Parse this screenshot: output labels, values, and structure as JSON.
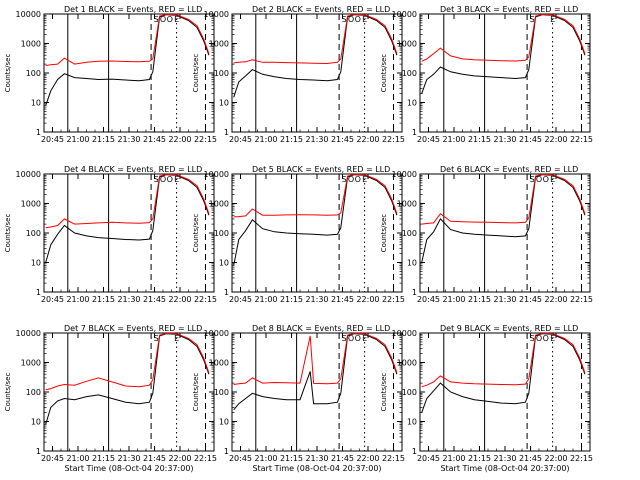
{
  "figure": {
    "x_tick_labels": [
      "20:45",
      "21:00",
      "21:15",
      "21:30",
      "21:45",
      "22:00",
      "22:15"
    ],
    "y_tick_labels": [
      "1",
      "10",
      "100",
      "1000",
      "10000"
    ]
  },
  "colors": {
    "events": "#000000",
    "lld": "#ff0000",
    "axes": "#000000"
  },
  "chart_data": [
    {
      "type": "line",
      "panel": 1,
      "title": "Det 1 BLACK = Events, RED = LLD",
      "ylabel": "Counts/sec",
      "xlabel": "",
      "y_scale": "log",
      "ylim": [
        1,
        10000
      ],
      "x_start_minute": 20.65,
      "x_end_minute": 22.33,
      "xlim": [
        "20:40",
        "22:20"
      ],
      "markers": [
        "S",
        "O",
        "O",
        "E"
      ],
      "series": [
        {
          "name": "BLACK = Events",
          "x": [
            "20:41",
            "20:44",
            "20:48",
            "20:52",
            "20:58",
            "21:05",
            "21:12",
            "21:20",
            "21:28",
            "21:36",
            "21:42",
            "21:44",
            "21:48",
            "21:52",
            "21:58",
            "22:05",
            "22:10",
            "22:14",
            "22:17"
          ],
          "values": [
            8,
            25,
            60,
            95,
            70,
            65,
            60,
            62,
            58,
            55,
            60,
            110,
            8000,
            9500,
            9000,
            6000,
            3500,
            1200,
            400
          ]
        },
        {
          "name": "RED = LLD",
          "x": [
            "20:41",
            "20:44",
            "20:48",
            "20:52",
            "20:58",
            "21:05",
            "21:12",
            "21:20",
            "21:28",
            "21:36",
            "21:42",
            "21:44",
            "21:48",
            "21:52",
            "21:58",
            "22:05",
            "22:10",
            "22:14",
            "22:17"
          ],
          "values": [
            180,
            190,
            200,
            320,
            200,
            230,
            250,
            255,
            245,
            240,
            250,
            300,
            8500,
            9800,
            9500,
            6500,
            4000,
            1400,
            450
          ]
        }
      ]
    },
    {
      "type": "line",
      "panel": 2,
      "title": "Det 2 BLACK = Events, RED = LLD",
      "ylabel": "Counts/sec",
      "xlabel": "",
      "y_scale": "log",
      "ylim": [
        1,
        10000
      ],
      "xlim": [
        "20:40",
        "22:20"
      ],
      "markers": [
        "S",
        "O",
        "O",
        "E"
      ],
      "series": [
        {
          "name": "BLACK = Events",
          "x": [
            "20:41",
            "20:44",
            "20:48",
            "20:52",
            "20:58",
            "21:05",
            "21:12",
            "21:20",
            "21:28",
            "21:36",
            "21:42",
            "21:44",
            "21:48",
            "21:52",
            "21:58",
            "22:05",
            "22:10",
            "22:14",
            "22:17"
          ],
          "values": [
            15,
            50,
            80,
            130,
            90,
            75,
            65,
            60,
            58,
            55,
            60,
            110,
            8000,
            9500,
            9000,
            6000,
            3500,
            1200,
            400
          ]
        },
        {
          "name": "RED = LLD",
          "x": [
            "20:41",
            "20:44",
            "20:48",
            "20:52",
            "20:58",
            "21:05",
            "21:12",
            "21:20",
            "21:28",
            "21:36",
            "21:42",
            "21:44",
            "21:48",
            "21:52",
            "21:58",
            "22:05",
            "22:10",
            "22:14",
            "22:17"
          ],
          "values": [
            220,
            230,
            240,
            280,
            230,
            230,
            225,
            220,
            215,
            210,
            230,
            300,
            8500,
            9800,
            9500,
            6500,
            4000,
            1400,
            450
          ]
        }
      ]
    },
    {
      "type": "line",
      "panel": 3,
      "title": "Det 3 BLACK = Events, RED = LLD",
      "ylabel": "Counts/sec",
      "xlabel": "",
      "y_scale": "log",
      "ylim": [
        1,
        10000
      ],
      "xlim": [
        "20:40",
        "22:20"
      ],
      "markers": [
        "S",
        "E"
      ],
      "series": [
        {
          "name": "BLACK = Events",
          "x": [
            "20:41",
            "20:44",
            "20:48",
            "20:52",
            "20:58",
            "21:05",
            "21:12",
            "21:20",
            "21:28",
            "21:36",
            "21:42",
            "21:44",
            "21:48",
            "21:52",
            "21:58",
            "22:05",
            "22:10",
            "22:14",
            "22:17"
          ],
          "values": [
            20,
            60,
            90,
            160,
            110,
            90,
            80,
            75,
            70,
            65,
            70,
            130,
            8000,
            9500,
            9000,
            6000,
            3500,
            1200,
            400
          ]
        },
        {
          "name": "RED = LLD",
          "x": [
            "20:41",
            "20:44",
            "20:48",
            "20:52",
            "20:58",
            "21:05",
            "21:12",
            "21:20",
            "21:28",
            "21:36",
            "21:42",
            "21:44",
            "21:48",
            "21:52",
            "21:58",
            "22:05",
            "22:10",
            "22:14",
            "22:17"
          ],
          "values": [
            250,
            300,
            450,
            700,
            380,
            300,
            280,
            270,
            260,
            255,
            270,
            350,
            8500,
            9800,
            9500,
            6500,
            4000,
            1400,
            450
          ]
        }
      ]
    },
    {
      "type": "line",
      "panel": 4,
      "title": "Det 4 BLACK = Events, RED = LLD",
      "ylabel": "Counts/sec",
      "xlabel": "",
      "y_scale": "log",
      "ylim": [
        1,
        10000
      ],
      "xlim": [
        "20:40",
        "22:20"
      ],
      "markers": [
        "S",
        "O",
        "O",
        "E"
      ],
      "series": [
        {
          "name": "BLACK = Events",
          "x": [
            "20:41",
            "20:44",
            "20:48",
            "20:52",
            "20:58",
            "21:05",
            "21:12",
            "21:20",
            "21:28",
            "21:36",
            "21:42",
            "21:44",
            "21:48",
            "21:52",
            "21:58",
            "22:05",
            "22:10",
            "22:14",
            "22:17"
          ],
          "values": [
            10,
            40,
            90,
            180,
            100,
            80,
            70,
            65,
            60,
            58,
            62,
            120,
            8000,
            9500,
            9000,
            6000,
            3500,
            1200,
            400
          ]
        },
        {
          "name": "RED = LLD",
          "x": [
            "20:41",
            "20:44",
            "20:48",
            "20:52",
            "20:58",
            "21:05",
            "21:12",
            "21:20",
            "21:28",
            "21:36",
            "21:42",
            "21:44",
            "21:48",
            "21:52",
            "21:58",
            "22:05",
            "22:10",
            "22:14",
            "22:17"
          ],
          "values": [
            150,
            160,
            180,
            300,
            200,
            210,
            220,
            230,
            220,
            215,
            225,
            300,
            8500,
            9800,
            9500,
            6500,
            4000,
            1400,
            450
          ]
        }
      ]
    },
    {
      "type": "line",
      "panel": 5,
      "title": "Det 5 BLACK = Events, RED = LLD",
      "ylabel": "Counts/sec",
      "xlabel": "",
      "y_scale": "log",
      "ylim": [
        1,
        10000
      ],
      "xlim": [
        "20:40",
        "22:20"
      ],
      "markers": [
        "S",
        "O",
        "O",
        "E"
      ],
      "series": [
        {
          "name": "BLACK = Events",
          "x": [
            "20:41",
            "20:44",
            "20:48",
            "20:52",
            "20:58",
            "21:05",
            "21:12",
            "21:20",
            "21:28",
            "21:36",
            "21:42",
            "21:44",
            "21:48",
            "21:52",
            "21:58",
            "22:05",
            "22:10",
            "22:14",
            "22:17"
          ],
          "values": [
            8,
            60,
            120,
            280,
            140,
            110,
            100,
            95,
            90,
            85,
            90,
            150,
            8000,
            9500,
            9000,
            6000,
            3500,
            1200,
            400
          ]
        },
        {
          "name": "RED = LLD",
          "x": [
            "20:41",
            "20:44",
            "20:48",
            "20:52",
            "20:58",
            "21:05",
            "21:12",
            "21:20",
            "21:28",
            "21:36",
            "21:42",
            "21:44",
            "21:48",
            "21:52",
            "21:58",
            "22:05",
            "22:10",
            "22:14",
            "22:17"
          ],
          "values": [
            350,
            360,
            380,
            650,
            400,
            400,
            410,
            415,
            410,
            400,
            410,
            480,
            8500,
            9800,
            9500,
            6500,
            4000,
            1400,
            450
          ]
        }
      ]
    },
    {
      "type": "line",
      "panel": 6,
      "title": "Det 6 BLACK = Events, RED = LLD",
      "ylabel": "Counts/sec",
      "xlabel": "",
      "y_scale": "log",
      "ylim": [
        1,
        10000
      ],
      "xlim": [
        "20:40",
        "22:20"
      ],
      "markers": [
        "S",
        "O",
        "O",
        "E"
      ],
      "series": [
        {
          "name": "BLACK = Events",
          "x": [
            "20:41",
            "20:44",
            "20:48",
            "20:52",
            "20:58",
            "21:05",
            "21:12",
            "21:20",
            "21:28",
            "21:36",
            "21:42",
            "21:44",
            "21:48",
            "21:52",
            "21:58",
            "22:05",
            "22:10",
            "22:14",
            "22:17"
          ],
          "values": [
            10,
            60,
            110,
            300,
            130,
            100,
            90,
            85,
            80,
            75,
            80,
            140,
            8000,
            9500,
            9000,
            6000,
            3500,
            1200,
            400
          ]
        },
        {
          "name": "RED = LLD",
          "x": [
            "20:41",
            "20:44",
            "20:48",
            "20:52",
            "20:58",
            "21:05",
            "21:12",
            "21:20",
            "21:28",
            "21:36",
            "21:42",
            "21:44",
            "21:48",
            "21:52",
            "21:58",
            "22:05",
            "22:10",
            "22:14",
            "22:17"
          ],
          "values": [
            200,
            210,
            220,
            450,
            250,
            240,
            235,
            230,
            225,
            220,
            230,
            320,
            8500,
            9800,
            9500,
            6500,
            4000,
            1400,
            450
          ]
        }
      ]
    },
    {
      "type": "line",
      "panel": 7,
      "title": "Det 7 BLACK = Events, RED = LLD",
      "ylabel": "Counts/sec",
      "xlabel": "Start Time (08-Oct-04 20:37:00)",
      "y_scale": "log",
      "ylim": [
        1,
        10000
      ],
      "xlim": [
        "20:40",
        "22:20"
      ],
      "markers": [
        "S",
        "E"
      ],
      "series": [
        {
          "name": "BLACK = Events",
          "x": [
            "20:41",
            "20:44",
            "20:48",
            "20:52",
            "20:58",
            "21:05",
            "21:12",
            "21:20",
            "21:28",
            "21:36",
            "21:42",
            "21:44",
            "21:48",
            "21:52",
            "21:58",
            "22:05",
            "22:10",
            "22:14",
            "22:17"
          ],
          "values": [
            8,
            30,
            50,
            60,
            55,
            70,
            80,
            60,
            45,
            40,
            45,
            90,
            8000,
            9500,
            9000,
            6000,
            3500,
            1200,
            400
          ]
        },
        {
          "name": "RED = LLD",
          "x": [
            "20:41",
            "20:44",
            "20:48",
            "20:52",
            "20:58",
            "21:05",
            "21:12",
            "21:20",
            "21:28",
            "21:36",
            "21:42",
            "21:44",
            "21:48",
            "21:52",
            "21:58",
            "22:05",
            "22:10",
            "22:14",
            "22:17"
          ],
          "values": [
            120,
            130,
            160,
            180,
            170,
            230,
            300,
            220,
            160,
            150,
            170,
            260,
            8500,
            9800,
            9500,
            6500,
            4000,
            1400,
            450
          ]
        }
      ]
    },
    {
      "type": "line",
      "panel": 8,
      "title": "Det 8 BLACK = Events, RED = LLD",
      "ylabel": "Counts/sec",
      "xlabel": "Start Time (08-Oct-04 20:37:00)",
      "y_scale": "log",
      "ylim": [
        1,
        10000
      ],
      "xlim": [
        "20:40",
        "22:20"
      ],
      "markers": [
        "S",
        "O",
        "O",
        "E"
      ],
      "series": [
        {
          "name": "BLACK = Events",
          "x": [
            "20:41",
            "20:44",
            "20:48",
            "20:52",
            "20:58",
            "21:05",
            "21:12",
            "21:20",
            "21:26",
            "21:28",
            "21:36",
            "21:42",
            "21:44",
            "21:48",
            "21:52",
            "21:58",
            "22:05",
            "22:10",
            "22:14",
            "22:17"
          ],
          "values": [
            25,
            40,
            60,
            90,
            70,
            60,
            55,
            55,
            500,
            40,
            40,
            45,
            90,
            8000,
            9500,
            9000,
            6000,
            3500,
            1200,
            400
          ]
        },
        {
          "name": "RED = LLD",
          "x": [
            "20:41",
            "20:44",
            "20:48",
            "20:52",
            "20:58",
            "21:05",
            "21:12",
            "21:20",
            "21:26",
            "21:28",
            "21:36",
            "21:42",
            "21:44",
            "21:48",
            "21:52",
            "21:58",
            "22:05",
            "22:10",
            "22:14",
            "22:17"
          ],
          "values": [
            180,
            190,
            200,
            300,
            200,
            210,
            205,
            200,
            8000,
            195,
            190,
            200,
            280,
            8500,
            9800,
            9500,
            6500,
            4000,
            1400,
            450
          ]
        }
      ]
    },
    {
      "type": "line",
      "panel": 9,
      "title": "Det 9 BLACK = Events, RED = LLD",
      "ylabel": "Counts/sec",
      "xlabel": "Start Time (08-Oct-04 20:37:00)",
      "y_scale": "log",
      "ylim": [
        1,
        10000
      ],
      "xlim": [
        "20:40",
        "22:20"
      ],
      "markers": [
        "S",
        "O",
        "O",
        "E"
      ],
      "series": [
        {
          "name": "BLACK = Events",
          "x": [
            "20:41",
            "20:44",
            "20:48",
            "20:52",
            "20:58",
            "21:05",
            "21:12",
            "21:20",
            "21:28",
            "21:36",
            "21:42",
            "21:44",
            "21:48",
            "21:52",
            "21:58",
            "22:05",
            "22:10",
            "22:14",
            "22:17"
          ],
          "values": [
            20,
            60,
            110,
            200,
            100,
            70,
            55,
            48,
            42,
            40,
            45,
            90,
            8000,
            9500,
            9000,
            6000,
            3500,
            1200,
            400
          ]
        },
        {
          "name": "RED = LLD",
          "x": [
            "20:41",
            "20:44",
            "20:48",
            "20:52",
            "20:58",
            "21:05",
            "21:12",
            "21:20",
            "21:28",
            "21:36",
            "21:42",
            "21:44",
            "21:48",
            "21:52",
            "21:58",
            "22:05",
            "22:10",
            "22:14",
            "22:17"
          ],
          "values": [
            150,
            170,
            220,
            350,
            220,
            200,
            190,
            185,
            180,
            175,
            185,
            280,
            8500,
            9800,
            9500,
            6500,
            4000,
            1400,
            450
          ]
        }
      ]
    }
  ]
}
